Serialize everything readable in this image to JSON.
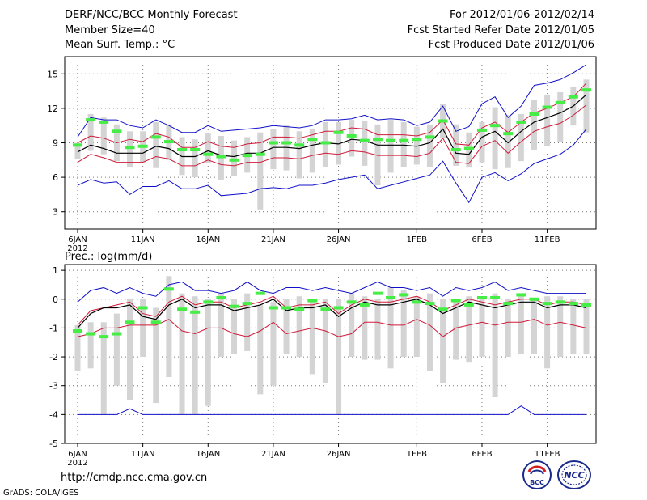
{
  "header": {
    "title": "DERF/NCC/BCC Monthly Forecast",
    "member_size": "Member Size=40",
    "variable": "Mean Surf. Temp.: °C",
    "period": "For 2012/01/06-2012/02/14",
    "fcst_started": "Fcst Started Refer Date 2012/01/05",
    "fcst_produced": "Fcst Produced Date 2012/01/06"
  },
  "precip_title": "Prec.: log(mm/d)",
  "footer": {
    "url": "http://cmdp.ncc.cma.gov.cn",
    "credit": "GrADS: COLA/IGES"
  },
  "logos": {
    "bcc": "BCC",
    "ncc": "NCC"
  },
  "colors": {
    "grid": "#7a7a7a",
    "box": "#d4d4d4",
    "mean": "#000000",
    "sd": "#d01a3a",
    "range": "#1010c8",
    "obs": "#44ee44"
  },
  "chart_data": [
    {
      "type": "box",
      "title": "Mean Surf. Temp.: °C",
      "x": [
        1,
        2,
        3,
        4,
        5,
        6,
        7,
        8,
        9,
        10,
        11,
        12,
        13,
        14,
        15,
        16,
        17,
        18,
        19,
        20,
        21,
        22,
        23,
        24,
        25,
        26,
        27,
        28,
        29,
        30,
        31,
        32,
        33,
        34,
        35,
        36,
        37,
        38,
        39,
        40
      ],
      "x_tick_labels": [
        "6JAN",
        "11JAN",
        "16JAN",
        "21JAN",
        "26JAN",
        "1FEB",
        "6FEB",
        "11FEB"
      ],
      "x_tick_positions": [
        1,
        6,
        11,
        16,
        21,
        27,
        32,
        37
      ],
      "x_year_label": "2012",
      "y_ticks": [
        3,
        6,
        9,
        12,
        15
      ],
      "ylim": [
        1.5,
        16.5
      ],
      "mean": [
        8.2,
        8.8,
        8.5,
        8.1,
        8.1,
        8.1,
        8.7,
        8.5,
        7.8,
        7.8,
        8.3,
        7.9,
        7.8,
        8.1,
        8.1,
        8.6,
        8.6,
        8.5,
        8.8,
        9.0,
        8.9,
        9.3,
        9.2,
        8.8,
        8.8,
        8.8,
        8.7,
        9.0,
        10.2,
        8.1,
        8.0,
        9.5,
        10.0,
        9.0,
        10.0,
        10.8,
        11.2,
        11.6,
        12.2,
        13.2
      ],
      "sd_upper": [
        9.0,
        9.6,
        9.4,
        9.0,
        9.3,
        9.1,
        9.8,
        9.5,
        8.6,
        8.6,
        9.1,
        8.7,
        8.6,
        8.9,
        9.0,
        9.5,
        9.5,
        9.4,
        9.7,
        10.0,
        10.0,
        10.3,
        10.2,
        9.7,
        9.7,
        9.7,
        9.6,
        9.9,
        11.0,
        8.9,
        8.8,
        10.3,
        10.8,
        9.9,
        10.8,
        11.6,
        12.0,
        12.5,
        13.0,
        14.2
      ],
      "sd_lower": [
        7.3,
        8.0,
        7.7,
        7.3,
        7.3,
        7.3,
        7.8,
        7.6,
        7.0,
        7.0,
        7.5,
        7.1,
        7.0,
        7.3,
        7.3,
        7.7,
        7.7,
        7.6,
        7.9,
        8.1,
        8.0,
        8.3,
        8.2,
        7.9,
        7.9,
        7.9,
        7.8,
        8.1,
        9.4,
        7.3,
        7.2,
        8.7,
        9.2,
        8.1,
        9.1,
        10.0,
        10.4,
        10.7,
        11.4,
        12.3
      ],
      "max": [
        9.5,
        11.2,
        11.0,
        11.0,
        10.5,
        10.3,
        11.0,
        10.5,
        9.9,
        9.9,
        10.5,
        10.0,
        10.1,
        10.2,
        10.3,
        10.5,
        10.4,
        10.3,
        10.5,
        11.0,
        11.0,
        11.1,
        11.4,
        11.0,
        11.1,
        11.0,
        10.5,
        10.8,
        12.2,
        10.0,
        10.4,
        12.4,
        13.0,
        11.2,
        12.2,
        14.0,
        14.2,
        14.5,
        15.1,
        15.8
      ],
      "min": [
        5.3,
        5.8,
        5.5,
        5.6,
        4.5,
        5.2,
        5.2,
        5.7,
        5.0,
        5.0,
        5.3,
        4.4,
        4.5,
        4.6,
        5.0,
        5.1,
        5.0,
        5.3,
        5.3,
        5.5,
        5.8,
        6.0,
        6.2,
        5.0,
        5.3,
        5.6,
        5.9,
        6.2,
        7.4,
        5.5,
        3.8,
        6.0,
        6.4,
        5.7,
        6.3,
        7.2,
        7.6,
        8.0,
        8.8,
        10.2
      ],
      "box_top": [
        9.0,
        11.5,
        11.2,
        10.6,
        10.0,
        10.0,
        10.8,
        10.6,
        9.5,
        9.3,
        9.8,
        9.6,
        9.2,
        9.5,
        9.9,
        10.2,
        10.5,
        10.0,
        10.2,
        10.8,
        10.8,
        11.0,
        10.9,
        10.6,
        11.0,
        10.8,
        10.4,
        10.6,
        12.4,
        10.6,
        9.9,
        10.8,
        12.1,
        11.4,
        11.5,
        12.7,
        13.2,
        13.4,
        13.9,
        14.5
      ],
      "box_bottom": [
        7.6,
        8.3,
        8.0,
        7.4,
        6.9,
        7.3,
        6.8,
        7.5,
        6.2,
        6.0,
        7.2,
        5.8,
        6.1,
        6.4,
        3.2,
        6.7,
        6.6,
        5.9,
        6.4,
        6.9,
        7.1,
        7.8,
        7.0,
        5.3,
        6.4,
        6.9,
        7.1,
        6.9,
        9.4,
        7.0,
        6.9,
        7.3,
        6.7,
        6.8,
        7.4,
        8.4,
        8.7,
        9.1,
        10.5,
        9.9
      ],
      "observed": [
        8.8,
        11.0,
        10.8,
        10.0,
        8.6,
        8.7,
        9.5,
        9.1,
        8.4,
        8.4,
        8.0,
        7.8,
        7.5,
        7.9,
        8.0,
        9.0,
        9.0,
        8.8,
        9.3,
        9.0,
        9.9,
        9.6,
        9.2,
        9.3,
        9.2,
        9.2,
        9.3,
        9.5,
        10.9,
        8.4,
        8.5,
        10.1,
        10.5,
        9.8,
        10.8,
        11.5,
        12.1,
        12.5,
        13.0,
        13.6
      ]
    },
    {
      "type": "box",
      "title": "Prec.: log(mm/d)",
      "x": [
        1,
        2,
        3,
        4,
        5,
        6,
        7,
        8,
        9,
        10,
        11,
        12,
        13,
        14,
        15,
        16,
        17,
        18,
        19,
        20,
        21,
        22,
        23,
        24,
        25,
        26,
        27,
        28,
        29,
        30,
        31,
        32,
        33,
        34,
        35,
        36,
        37,
        38,
        39,
        40
      ],
      "x_tick_labels": [
        "6JAN",
        "11JAN",
        "16JAN",
        "21JAN",
        "26JAN",
        "1FEB",
        "6FEB",
        "11FEB"
      ],
      "x_tick_positions": [
        1,
        6,
        11,
        16,
        21,
        27,
        32,
        37
      ],
      "x_year_label": "2012",
      "y_ticks": [
        -5,
        -4,
        -3,
        -2,
        -1,
        0,
        1
      ],
      "ylim": [
        -5,
        1.2
      ],
      "mean": [
        -1.0,
        -0.5,
        -0.3,
        -0.3,
        -0.2,
        -0.6,
        -0.7,
        -0.2,
        0.0,
        -0.3,
        -0.2,
        -0.2,
        -0.4,
        -0.3,
        -0.2,
        0.0,
        -0.4,
        -0.3,
        -0.3,
        -0.2,
        -0.6,
        -0.3,
        -0.1,
        -0.2,
        -0.2,
        -0.1,
        0.0,
        -0.2,
        -0.5,
        -0.3,
        -0.1,
        -0.2,
        -0.3,
        -0.2,
        -0.1,
        -0.1,
        -0.3,
        -0.2,
        -0.2,
        -0.3
      ],
      "sd_upper": [
        -0.9,
        -0.4,
        -0.3,
        -0.2,
        -0.1,
        -0.5,
        -0.6,
        -0.1,
        0.1,
        -0.2,
        -0.1,
        -0.1,
        -0.3,
        -0.2,
        -0.1,
        0.1,
        -0.3,
        -0.2,
        -0.2,
        -0.1,
        -0.5,
        -0.2,
        0.0,
        -0.1,
        -0.1,
        0.0,
        0.1,
        -0.1,
        -0.4,
        -0.2,
        0.0,
        -0.1,
        -0.2,
        -0.1,
        0.0,
        0.0,
        -0.2,
        -0.1,
        -0.1,
        -0.2
      ],
      "sd_lower": [
        -1.3,
        -1.2,
        -1.0,
        -1.0,
        -0.9,
        -0.9,
        -0.9,
        -0.7,
        -1.1,
        -1.2,
        -1.0,
        -1.0,
        -1.2,
        -1.3,
        -1.1,
        -0.8,
        -1.2,
        -1.1,
        -1.0,
        -1.1,
        -1.3,
        -1.2,
        -0.8,
        -0.8,
        -0.9,
        -0.9,
        -0.7,
        -0.9,
        -1.3,
        -1.0,
        -0.9,
        -0.8,
        -0.9,
        -0.8,
        -0.8,
        -0.7,
        -0.9,
        -0.8,
        -0.9,
        -1.0
      ],
      "max": [
        -0.1,
        0.3,
        0.4,
        0.2,
        0.4,
        0.2,
        0.1,
        0.5,
        0.6,
        0.3,
        0.3,
        0.2,
        0.3,
        0.6,
        0.3,
        0.2,
        0.4,
        0.4,
        0.3,
        0.4,
        0.3,
        0.2,
        0.4,
        0.6,
        0.4,
        0.4,
        0.3,
        0.4,
        0.1,
        0.4,
        0.3,
        0.4,
        0.6,
        0.3,
        0.4,
        0.3,
        0.2,
        0.2,
        0.2,
        0.2
      ],
      "min": [
        -4.0,
        -4.0,
        -4.0,
        -4.0,
        -3.8,
        -4.0,
        -4.0,
        -4.0,
        -4.0,
        -4.0,
        -4.0,
        -4.0,
        -4.0,
        -4.0,
        -4.0,
        -4.0,
        -4.0,
        -4.0,
        -4.0,
        -4.0,
        -4.0,
        -4.0,
        -4.0,
        -4.0,
        -4.0,
        -4.0,
        -4.0,
        -4.0,
        -4.0,
        -4.0,
        -4.0,
        -4.0,
        -4.0,
        -4.0,
        -3.7,
        -4.0,
        -4.0,
        -4.0,
        -4.0,
        -4.0
      ],
      "box_top": [
        -0.9,
        -0.8,
        -0.8,
        -0.5,
        0.0,
        0.0,
        -0.3,
        0.8,
        0.2,
        0.1,
        0.0,
        0.2,
        0.0,
        0.2,
        -0.2,
        -0.1,
        0.0,
        0.1,
        0.0,
        0.0,
        0.0,
        0.2,
        0.1,
        0.0,
        0.4,
        0.3,
        0.1,
        0.2,
        0.0,
        0.0,
        0.1,
        0.0,
        0.2,
        0.0,
        0.2,
        0.0,
        0.1,
        0.1,
        0.0,
        0.0
      ],
      "box_bottom": [
        -2.5,
        -2.4,
        -4.0,
        -3.0,
        -3.5,
        -2.0,
        -3.6,
        -2.7,
        -4.0,
        -4.0,
        -3.7,
        -2.0,
        -1.9,
        -1.8,
        -3.3,
        -3.0,
        -1.9,
        -2.0,
        -2.6,
        -2.9,
        -4.0,
        -2.0,
        -2.1,
        -2.1,
        -2.4,
        -2.0,
        -2.0,
        -2.5,
        -2.9,
        -2.1,
        -2.2,
        -2.0,
        -3.4,
        -2.0,
        -1.9,
        -1.9,
        -2.4,
        -2.0,
        -1.9,
        -1.9
      ],
      "observed": [
        -1.1,
        -1.2,
        -1.3,
        -1.2,
        -0.8,
        -0.3,
        -0.8,
        0.35,
        -0.35,
        -0.45,
        -0.1,
        0.05,
        -0.25,
        -0.15,
        0.2,
        -0.3,
        -0.3,
        -0.35,
        -0.05,
        -0.35,
        -0.3,
        -0.1,
        -0.2,
        0.2,
        0.05,
        0.15,
        -0.1,
        -0.15,
        -0.35,
        -0.05,
        -0.2,
        0.05,
        0.05,
        -0.15,
        0.15,
        0.0,
        -0.15,
        -0.1,
        -0.15,
        -0.2
      ]
    }
  ]
}
